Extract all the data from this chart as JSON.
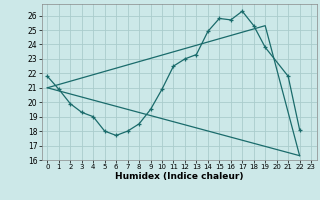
{
  "xlabel": "Humidex (Indice chaleur)",
  "bg_color": "#cce8e8",
  "grid_color": "#aacccc",
  "line_color": "#1a6b6b",
  "xlim": [
    -0.5,
    23.5
  ],
  "ylim": [
    16,
    26.8
  ],
  "yticks": [
    16,
    17,
    18,
    19,
    20,
    21,
    22,
    23,
    24,
    25,
    26
  ],
  "xticks": [
    0,
    1,
    2,
    3,
    4,
    5,
    6,
    7,
    8,
    9,
    10,
    11,
    12,
    13,
    14,
    15,
    16,
    17,
    18,
    19,
    20,
    21,
    22,
    23
  ],
  "curve1_x": [
    0,
    1,
    2,
    3,
    4,
    5,
    6,
    7,
    8,
    9,
    10,
    11,
    12,
    13,
    14,
    15,
    16,
    17,
    18,
    19,
    21,
    22
  ],
  "curve1_y": [
    21.8,
    20.9,
    19.9,
    19.3,
    19.0,
    18.0,
    17.7,
    18.0,
    18.5,
    19.5,
    20.9,
    22.5,
    23.0,
    23.3,
    24.9,
    25.8,
    25.7,
    26.3,
    25.3,
    23.8,
    21.8,
    18.1
  ],
  "curve2_x": [
    0,
    19,
    22
  ],
  "curve2_y": [
    21.0,
    25.3,
    16.3
  ],
  "curve3_x": [
    0,
    22
  ],
  "curve3_y": [
    21.0,
    16.3
  ]
}
